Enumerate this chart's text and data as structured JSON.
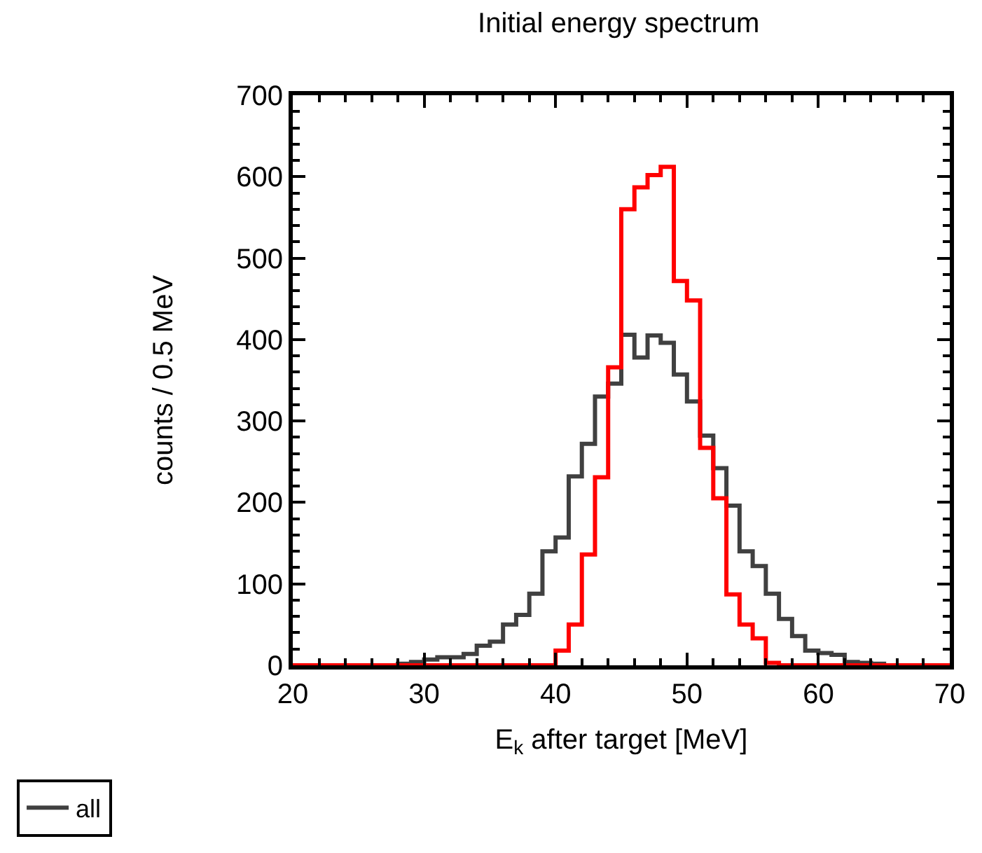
{
  "chart_data": {
    "type": "histogram",
    "title": "Initial energy spectrum",
    "xlabel": "E$_{k}$ after target [MeV]",
    "ylabel": "counts / 0.5 MeV",
    "bins": [
      20,
      21,
      22,
      23,
      24,
      25,
      26,
      27,
      28,
      29,
      30,
      31,
      32,
      33,
      34,
      35,
      36,
      37,
      38,
      39,
      40,
      41,
      42,
      43,
      44,
      45,
      46,
      47,
      48,
      49,
      50,
      51,
      52,
      53,
      54,
      55,
      56,
      57,
      58,
      59,
      60,
      61,
      62,
      63,
      64,
      65,
      66,
      67,
      68,
      69,
      70
    ],
    "series": [
      {
        "name": "all",
        "color": "#404040",
        "values": [
          0,
          0,
          0,
          0,
          0,
          0,
          0,
          0,
          2,
          4,
          7,
          10,
          10,
          14,
          24,
          29,
          50,
          62,
          88,
          140,
          157,
          232,
          272,
          330,
          346,
          406,
          378,
          405,
          396,
          357,
          324,
          282,
          242,
          196,
          140,
          122,
          88,
          57,
          36,
          18,
          15,
          13,
          4,
          3,
          2,
          0,
          0,
          0,
          0,
          0
        ]
      },
      {
        "color": "#ff0000",
        "values": [
          0,
          0,
          0,
          0,
          0,
          0,
          0,
          0,
          0,
          0,
          0,
          0,
          0,
          0,
          0,
          0,
          0,
          0,
          0,
          0,
          18,
          50,
          136,
          231,
          366,
          560,
          587,
          602,
          612,
          472,
          448,
          267,
          205,
          87,
          50,
          33,
          3,
          0,
          0,
          0,
          0,
          0,
          0,
          0,
          0,
          0,
          0,
          0,
          0,
          0
        ]
      }
    ],
    "xlim": [
      20,
      70
    ],
    "xticks": [
      20,
      30,
      40,
      50,
      60,
      70
    ],
    "ylim": [
      0,
      700
    ],
    "yticks": [
      0,
      100,
      200,
      300,
      400,
      500,
      600,
      700
    ],
    "legend": "bottom left"
  }
}
